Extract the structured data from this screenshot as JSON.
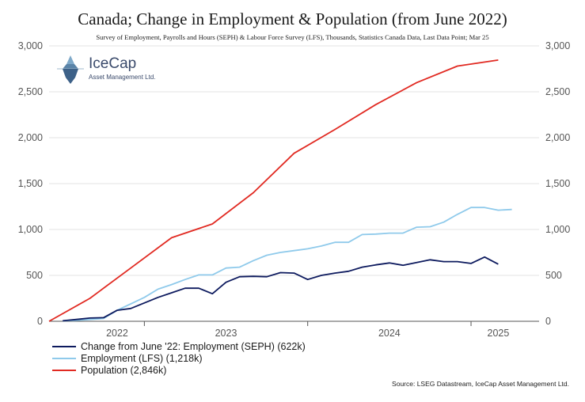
{
  "title": "Canada; Change in Employment & Population (from June 2022)",
  "subtitle": "Survey of Employment, Payrolls and Hours (SEPH) & Labour Force Survey (LFS), Thousands, Statistics Canada Data, Last Data Point; Mar 25",
  "logo": {
    "name": "IceCap",
    "tagline": "Asset Management Ltd."
  },
  "source": "Source: LSEG Datastream, IceCap Asset Management Ltd.",
  "chart_data": {
    "type": "line",
    "title": "Canada; Change in Employment & Population (from June 2022)",
    "ylim": [
      0,
      3000
    ],
    "y_ticks": [
      "0",
      "500",
      "1,000",
      "1,500",
      "2,000",
      "2,500",
      "3,000"
    ],
    "y_tick_values": [
      0,
      500,
      1000,
      1500,
      2000,
      2500,
      3000
    ],
    "x_tick_labels": [
      "2022",
      "2023",
      "2024",
      "2025"
    ],
    "x_ticks": [
      "2022-11",
      "2023-07",
      "2024-07",
      "2025-03"
    ],
    "x_dividers": [
      "2023-01",
      "2024-01",
      "2025-01"
    ],
    "x_range": [
      "2022-06",
      "2025-06"
    ],
    "grid": true,
    "legend_position": "bottom-left",
    "series": [
      {
        "name": "Change from June '22: Employment (SEPH) (622k)",
        "color": "#0d1a5e",
        "x": [
          "2022-07",
          "2022-08",
          "2022-09",
          "2022-10",
          "2022-11",
          "2022-12",
          "2023-01",
          "2023-02",
          "2023-03",
          "2023-04",
          "2023-05",
          "2023-06",
          "2023-07",
          "2023-08",
          "2023-09",
          "2023-10",
          "2023-11",
          "2023-12",
          "2024-01",
          "2024-02",
          "2024-03",
          "2024-04",
          "2024-05",
          "2024-06",
          "2024-07",
          "2024-08",
          "2024-09",
          "2024-10",
          "2024-11",
          "2024-12",
          "2025-01",
          "2025-02",
          "2025-03"
        ],
        "values": [
          5,
          20,
          35,
          40,
          120,
          140,
          200,
          260,
          310,
          360,
          360,
          300,
          425,
          485,
          490,
          485,
          530,
          525,
          455,
          500,
          525,
          545,
          590,
          615,
          635,
          610,
          640,
          670,
          650,
          650,
          630,
          700,
          622
        ]
      },
      {
        "name": "Employment (LFS) (1,218k)",
        "color": "#8fcaeb",
        "x": [
          "2022-07",
          "2022-08",
          "2022-09",
          "2022-10",
          "2022-11",
          "2022-12",
          "2023-01",
          "2023-02",
          "2023-03",
          "2023-04",
          "2023-05",
          "2023-06",
          "2023-07",
          "2023-08",
          "2023-09",
          "2023-10",
          "2023-11",
          "2023-12",
          "2024-01",
          "2024-02",
          "2024-03",
          "2024-04",
          "2024-05",
          "2024-06",
          "2024-07",
          "2024-08",
          "2024-09",
          "2024-10",
          "2024-11",
          "2024-12",
          "2025-01",
          "2025-02",
          "2025-03",
          "2025-04"
        ],
        "values": [
          5,
          10,
          20,
          30,
          120,
          190,
          260,
          350,
          400,
          455,
          505,
          505,
          580,
          590,
          660,
          720,
          750,
          770,
          790,
          820,
          860,
          860,
          945,
          950,
          960,
          960,
          1025,
          1030,
          1080,
          1165,
          1240,
          1240,
          1210,
          1218
        ]
      },
      {
        "name": "Population (2,846k)",
        "color": "#e12a22",
        "x": [
          "2022-06",
          "2022-09",
          "2022-12",
          "2023-03",
          "2023-06",
          "2023-09",
          "2023-12",
          "2024-03",
          "2024-06",
          "2024-09",
          "2024-12",
          "2025-03"
        ],
        "values": [
          0,
          250,
          580,
          910,
          1060,
          1400,
          1830,
          2090,
          2360,
          2600,
          2780,
          2846
        ]
      }
    ]
  }
}
